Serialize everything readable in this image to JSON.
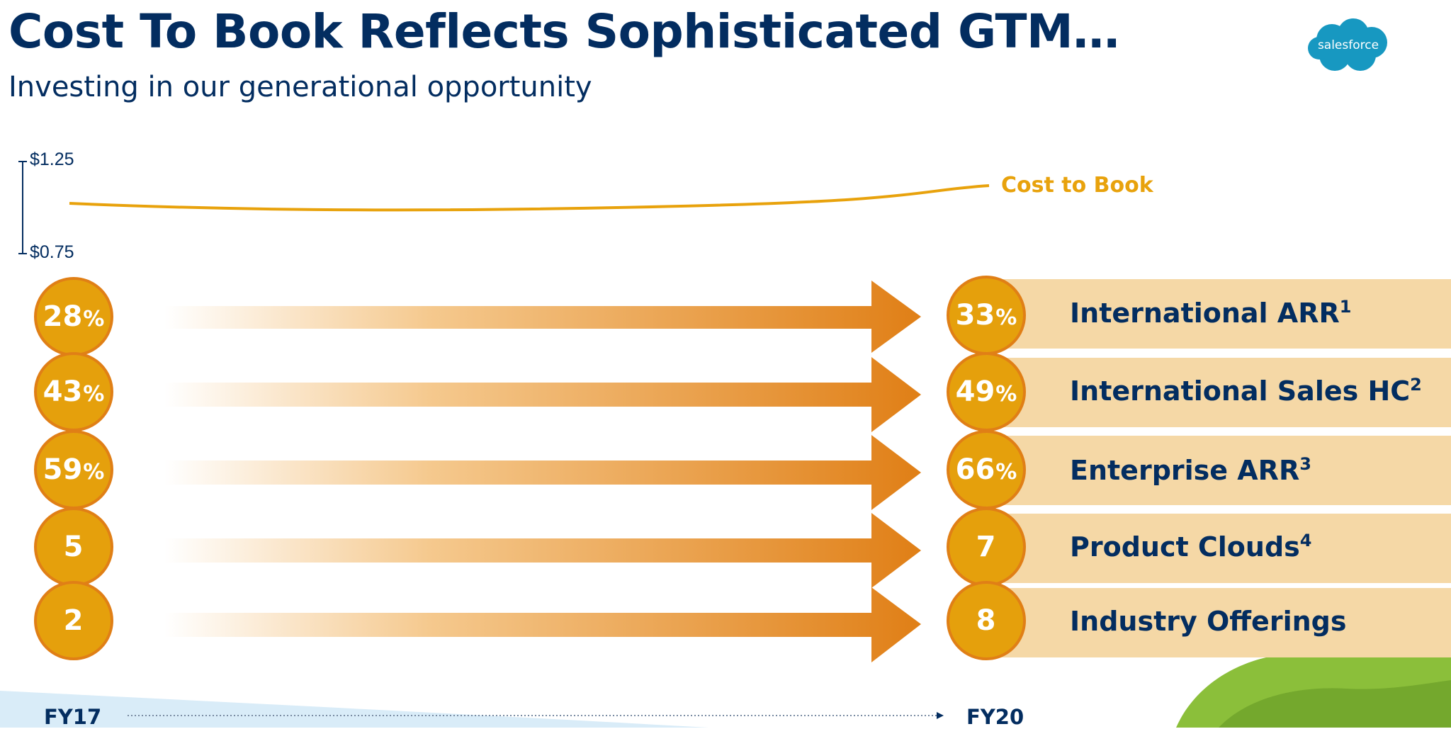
{
  "header": {
    "title": "Cost To Book Reflects Sophisticated GTM…",
    "subtitle": "Investing in our generational opportunity"
  },
  "logo": {
    "text": "salesforce",
    "color": "#1798c1"
  },
  "cost_line": {
    "axis_top": "$1.25",
    "axis_bottom": "$0.75",
    "label": "Cost to Book",
    "color": "#e8a20c"
  },
  "timeline": {
    "start": "FY17",
    "end": "FY20"
  },
  "colors": {
    "navy": "#032d60",
    "circle_fill": "#e5a00c",
    "circle_border": "#e07f16",
    "row_bar": "#f5d8a6",
    "arrow": "#e07f16"
  },
  "metrics": [
    {
      "fy17": "28",
      "fy17_unit": "%",
      "fy20": "33",
      "fy20_unit": "%",
      "label": "International ARR",
      "footnote": "1"
    },
    {
      "fy17": "43",
      "fy17_unit": "%",
      "fy20": "49",
      "fy20_unit": "%",
      "label": "International Sales HC",
      "footnote": "2"
    },
    {
      "fy17": "59",
      "fy17_unit": "%",
      "fy20": "66",
      "fy20_unit": "%",
      "label": "Enterprise ARR",
      "footnote": "3"
    },
    {
      "fy17": "5",
      "fy17_unit": "",
      "fy20": "7",
      "fy20_unit": "",
      "label": "Product Clouds",
      "footnote": "4"
    },
    {
      "fy17": "2",
      "fy17_unit": "",
      "fy20": "8",
      "fy20_unit": "",
      "label": "Industry Offerings",
      "footnote": ""
    }
  ]
}
